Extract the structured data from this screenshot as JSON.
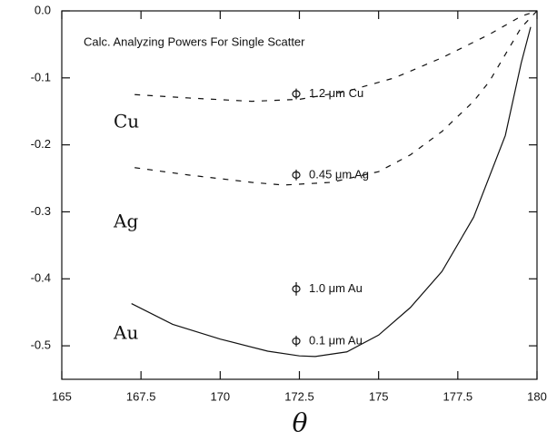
{
  "chart_data": {
    "type": "line",
    "title": "Calc. Analyzing Powers For Single Scatter",
    "xlabel": "θ",
    "xlim": [
      165,
      180
    ],
    "ylim": [
      -0.55,
      0
    ],
    "xticks": [
      165,
      167.5,
      170,
      172.5,
      175,
      177.5,
      180
    ],
    "yticks": [
      {
        "value": 0,
        "label": "0.0"
      },
      -0.1,
      -0.2,
      -0.3,
      -0.4,
      -0.5
    ],
    "series": [
      {
        "name": "Cu",
        "color": "#111111",
        "dash": true,
        "x": [
          167.3,
          169,
          171,
          172.5,
          174,
          175.5,
          177,
          178.5,
          179.5,
          180
        ],
        "values": [
          -0.125,
          -0.13,
          -0.135,
          -0.132,
          -0.12,
          -0.1,
          -0.07,
          -0.035,
          -0.008,
          0
        ]
      },
      {
        "name": "Ag",
        "color": "#111111",
        "dash": true,
        "x": [
          167.3,
          169,
          171,
          172,
          173.5,
          175,
          176,
          177,
          178,
          178.5,
          179.5,
          180
        ],
        "values": [
          -0.234,
          -0.245,
          -0.256,
          -0.26,
          -0.256,
          -0.24,
          -0.215,
          -0.18,
          -0.135,
          -0.105,
          -0.025,
          0
        ]
      },
      {
        "name": "Au",
        "color": "#111111",
        "dash": false,
        "x": [
          167.2,
          168.5,
          170,
          171.5,
          172.5,
          173,
          174,
          175,
          176,
          177,
          178,
          179,
          179.5,
          179.8
        ],
        "values": [
          -0.437,
          -0.468,
          -0.49,
          -0.508,
          -0.515,
          -0.516,
          -0.509,
          -0.484,
          -0.443,
          -0.389,
          -0.308,
          -0.186,
          -0.078,
          -0.024
        ]
      }
    ],
    "points": {
      "x": [
        172.4,
        172.4,
        172.4,
        172.4
      ],
      "values": [
        -0.124,
        -0.245,
        -0.415,
        -0.493
      ],
      "errors": [
        0.008,
        0.008,
        0.01,
        0.008
      ],
      "labels": [
        "1.2 μm Cu",
        "0.45 μm Ag",
        "1.0 μm Au",
        "0.1 μm Au"
      ]
    }
  }
}
